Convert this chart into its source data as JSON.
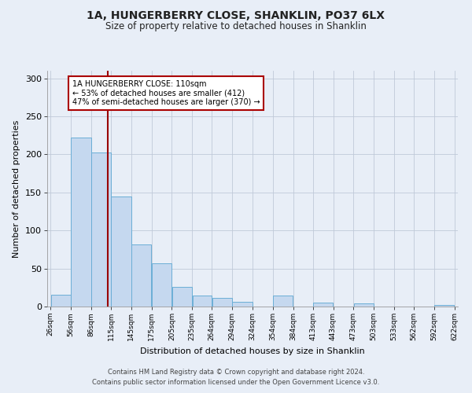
{
  "title": "1A, HUNGERBERRY CLOSE, SHANKLIN, PO37 6LX",
  "subtitle": "Size of property relative to detached houses in Shanklin",
  "xlabel": "Distribution of detached houses by size in Shanklin",
  "ylabel": "Number of detached properties",
  "bg_color": "#e8eef7",
  "bar_color": "#c5d8ef",
  "bar_edge_color": "#6baed6",
  "bin_edges": [
    26,
    56,
    86,
    115,
    145,
    175,
    205,
    235,
    264,
    294,
    324,
    354,
    384,
    413,
    443,
    473,
    503,
    533,
    562,
    592,
    622
  ],
  "bar_heights": [
    16,
    222,
    203,
    145,
    82,
    57,
    26,
    14,
    11,
    6,
    0,
    14,
    0,
    5,
    0,
    4,
    0,
    0,
    0,
    2
  ],
  "tick_labels": [
    "26sqm",
    "56sqm",
    "86sqm",
    "115sqm",
    "145sqm",
    "175sqm",
    "205sqm",
    "235sqm",
    "264sqm",
    "294sqm",
    "324sqm",
    "354sqm",
    "384sqm",
    "413sqm",
    "443sqm",
    "473sqm",
    "503sqm",
    "533sqm",
    "562sqm",
    "592sqm",
    "622sqm"
  ],
  "vline_x": 110,
  "vline_color": "#990000",
  "annotation_line1": "1A HUNGERBERRY CLOSE: 110sqm",
  "annotation_line2": "← 53% of detached houses are smaller (412)",
  "annotation_line3": "47% of semi-detached houses are larger (370) →",
  "annotation_box_color": "#ffffff",
  "annotation_box_edge": "#aa0000",
  "ylim": [
    0,
    310
  ],
  "yticks": [
    0,
    50,
    100,
    150,
    200,
    250,
    300
  ],
  "footer_line1": "Contains HM Land Registry data © Crown copyright and database right 2024.",
  "footer_line2": "Contains public sector information licensed under the Open Government Licence v3.0."
}
